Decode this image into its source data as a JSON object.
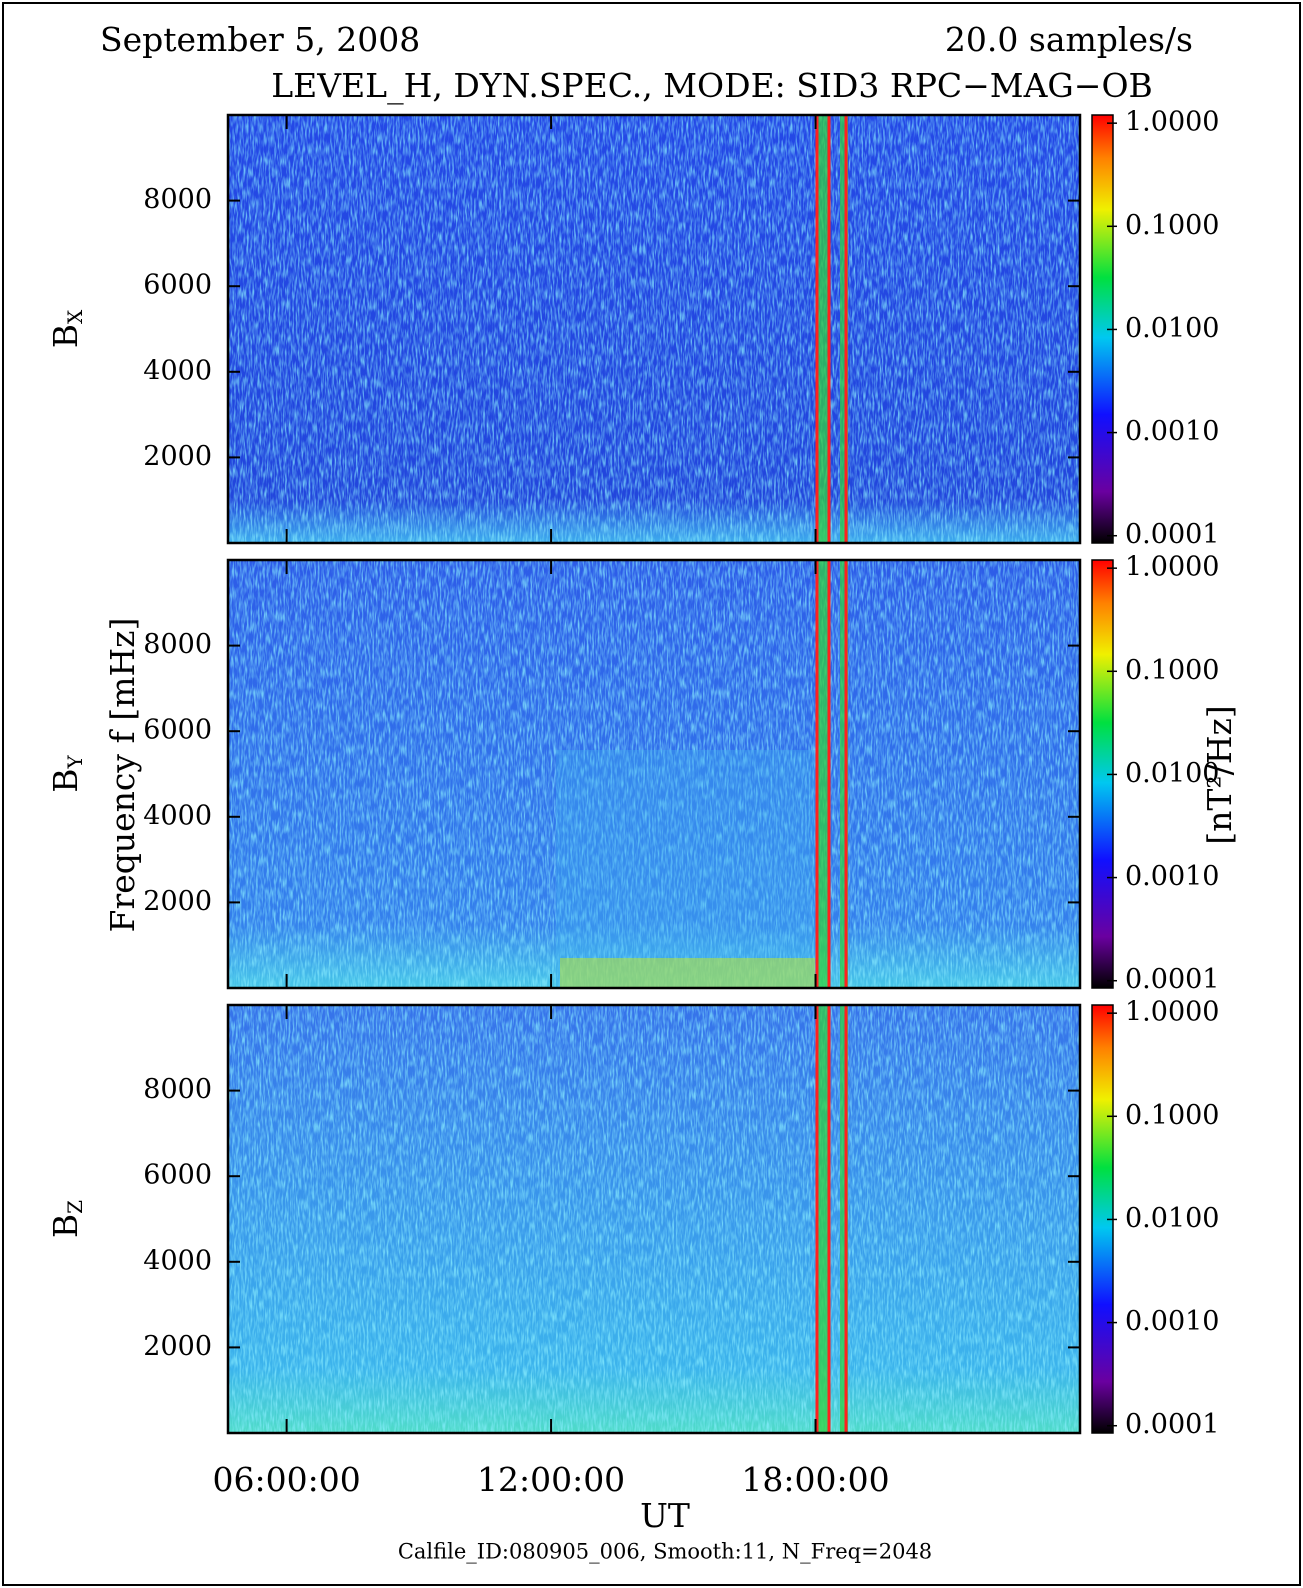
{
  "chart_data": {
    "type": "heatmap",
    "date": "September 5, 2008",
    "rate": "20.0 samples/s",
    "title": "LEVEL_H, DYN.SPEC., MODE: SID3 RPC−MAG−OB",
    "x_label": "UT",
    "y_label": "Frequency f [mHz]",
    "colorbar_label": "[nT²/Hz]",
    "footer": "Calfile_ID:080905_006, Smooth:11, N_Freq=2048",
    "panels": [
      {
        "main": "B",
        "sub": "X"
      },
      {
        "main": "B",
        "sub": "Y"
      },
      {
        "main": "B",
        "sub": "Z"
      }
    ],
    "xlim": [
      4.67,
      24
    ],
    "xticks": [
      {
        "value": 6,
        "label": "06:00:00"
      },
      {
        "value": 12,
        "label": "12:00:00"
      },
      {
        "value": 18,
        "label": "18:00:00"
      }
    ],
    "ylim": [
      0,
      10000
    ],
    "yticks": [
      2000,
      4000,
      6000,
      8000
    ],
    "clim": [
      8.5e-05,
      1.2
    ],
    "color_scale": "log",
    "cticks": [
      {
        "value": 0.0001,
        "label": "0.0001"
      },
      {
        "value": 0.001,
        "label": "0.0010"
      },
      {
        "value": 0.01,
        "label": "0.0100"
      },
      {
        "value": 0.1,
        "label": "0.1000"
      },
      {
        "value": 1,
        "label": "1.0000"
      }
    ]
  }
}
